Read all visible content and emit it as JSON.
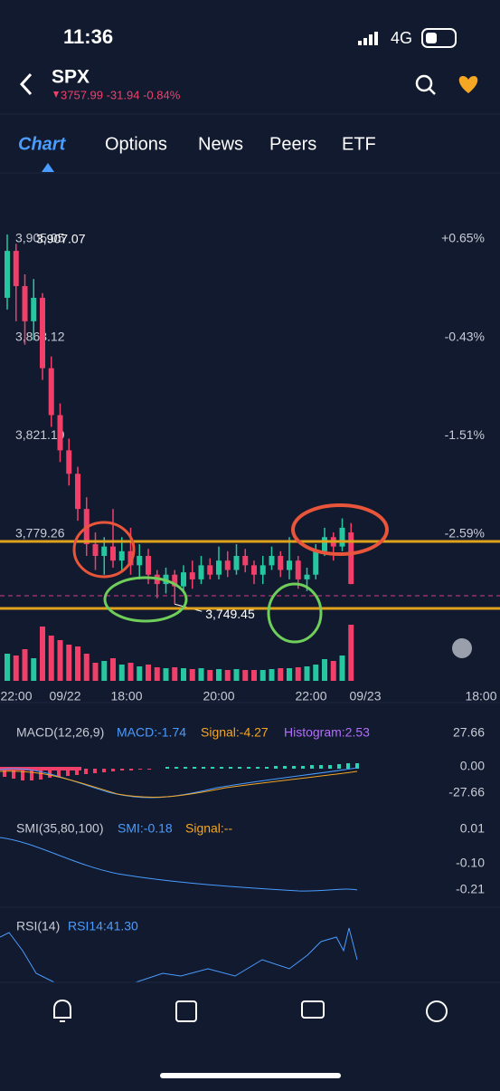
{
  "status_bar": {
    "time": "11:36",
    "network": "4G"
  },
  "header": {
    "symbol": "SPX",
    "quote": "3757.99 -31.94 -0.84%"
  },
  "tabs": [
    "Chart",
    "Options",
    "News",
    "Peers",
    "ETF"
  ],
  "price_chart": {
    "price_axis": [
      {
        "value": 3905.05,
        "label": "3,905.05"
      },
      {
        "value": 3863.12,
        "label": "3,863.12"
      },
      {
        "value": 3821.19,
        "label": "3,821.19"
      },
      {
        "value": 3779.26,
        "label": "3,779.26"
      }
    ],
    "percent_axis": [
      "+0.65%",
      "-0.43%",
      "-1.51%",
      "-2.59%"
    ],
    "high_label": "3,907.07",
    "low_label": "3,749.45",
    "time_labels": [
      "22:00",
      "09/22",
      "18:00",
      "20:00",
      "22:00",
      "09/23",
      "18:00"
    ],
    "candles": [
      {
        "o": 3880,
        "c": 3900,
        "h": 3907,
        "l": 3875
      },
      {
        "o": 3900,
        "c": 3885,
        "h": 3903,
        "l": 3870
      },
      {
        "o": 3885,
        "c": 3870,
        "h": 3890,
        "l": 3860
      },
      {
        "o": 3870,
        "c": 3880,
        "h": 3888,
        "l": 3862
      },
      {
        "o": 3880,
        "c": 3850,
        "h": 3882,
        "l": 3845
      },
      {
        "o": 3850,
        "c": 3830,
        "h": 3855,
        "l": 3825
      },
      {
        "o": 3830,
        "c": 3815,
        "h": 3835,
        "l": 3810
      },
      {
        "o": 3815,
        "c": 3805,
        "h": 3820,
        "l": 3800
      },
      {
        "o": 3805,
        "c": 3790,
        "h": 3808,
        "l": 3785
      },
      {
        "o": 3790,
        "c": 3775,
        "h": 3795,
        "l": 3770
      },
      {
        "o": 3775,
        "c": 3770,
        "h": 3780,
        "l": 3764
      },
      {
        "o": 3770,
        "c": 3774,
        "h": 3778,
        "l": 3762
      },
      {
        "o": 3774,
        "c": 3768,
        "h": 3790,
        "l": 3765
      },
      {
        "o": 3768,
        "c": 3772,
        "h": 3778,
        "l": 3764
      },
      {
        "o": 3772,
        "c": 3766,
        "h": 3782,
        "l": 3762
      },
      {
        "o": 3766,
        "c": 3770,
        "h": 3775,
        "l": 3760
      },
      {
        "o": 3770,
        "c": 3762,
        "h": 3773,
        "l": 3758
      },
      {
        "o": 3762,
        "c": 3758,
        "h": 3764,
        "l": 3752
      },
      {
        "o": 3758,
        "c": 3762,
        "h": 3765,
        "l": 3754
      },
      {
        "o": 3762,
        "c": 3757,
        "h": 3764,
        "l": 3749.45
      },
      {
        "o": 3757,
        "c": 3763,
        "h": 3766,
        "l": 3754
      },
      {
        "o": 3763,
        "c": 3760,
        "h": 3768,
        "l": 3756
      },
      {
        "o": 3760,
        "c": 3766,
        "h": 3770,
        "l": 3758
      },
      {
        "o": 3766,
        "c": 3762,
        "h": 3769,
        "l": 3760
      },
      {
        "o": 3762,
        "c": 3768,
        "h": 3774,
        "l": 3760
      },
      {
        "o": 3768,
        "c": 3764,
        "h": 3772,
        "l": 3761
      },
      {
        "o": 3764,
        "c": 3770,
        "h": 3775,
        "l": 3762
      },
      {
        "o": 3770,
        "c": 3766,
        "h": 3773,
        "l": 3763
      },
      {
        "o": 3766,
        "c": 3762,
        "h": 3768,
        "l": 3758
      },
      {
        "o": 3762,
        "c": 3766,
        "h": 3770,
        "l": 3758
      },
      {
        "o": 3766,
        "c": 3770,
        "h": 3774,
        "l": 3764
      },
      {
        "o": 3770,
        "c": 3764,
        "h": 3772,
        "l": 3761
      },
      {
        "o": 3764,
        "c": 3768,
        "h": 3778,
        "l": 3760
      },
      {
        "o": 3768,
        "c": 3760,
        "h": 3770,
        "l": 3756
      },
      {
        "o": 3760,
        "c": 3762,
        "h": 3765,
        "l": 3755
      },
      {
        "o": 3762,
        "c": 3772,
        "h": 3775,
        "l": 3760
      },
      {
        "o": 3772,
        "c": 3778,
        "h": 3782,
        "l": 3770
      },
      {
        "o": 3778,
        "c": 3774,
        "h": 3780,
        "l": 3768
      },
      {
        "o": 3774,
        "c": 3782,
        "h": 3786,
        "l": 3772
      },
      {
        "o": 3780,
        "c": 3758,
        "h": 3784,
        "l": 3757.99
      }
    ],
    "volume": [
      30,
      28,
      35,
      25,
      60,
      50,
      45,
      40,
      38,
      30,
      20,
      22,
      25,
      18,
      20,
      16,
      18,
      15,
      14,
      15,
      14,
      13,
      14,
      12,
      13,
      12,
      13,
      12,
      12,
      12,
      13,
      14,
      14,
      15,
      16,
      18,
      24,
      22,
      28,
      62
    ]
  },
  "macd": {
    "title": "MACD(12,26,9)",
    "macd": "MACD:-1.74",
    "signal": "Signal:-4.27",
    "histogram": "Histogram:2.53",
    "scale": [
      "27.66",
      "0.00",
      "-27.66"
    ]
  },
  "smi": {
    "title": "SMI(35,80,100)",
    "smi": "SMI:-0.18",
    "signal": "Signal:--",
    "scale": [
      "0.01",
      "-0.10",
      "-0.21"
    ]
  },
  "rsi": {
    "title": "RSI(14)",
    "rsi": "RSI14:41.30"
  }
}
